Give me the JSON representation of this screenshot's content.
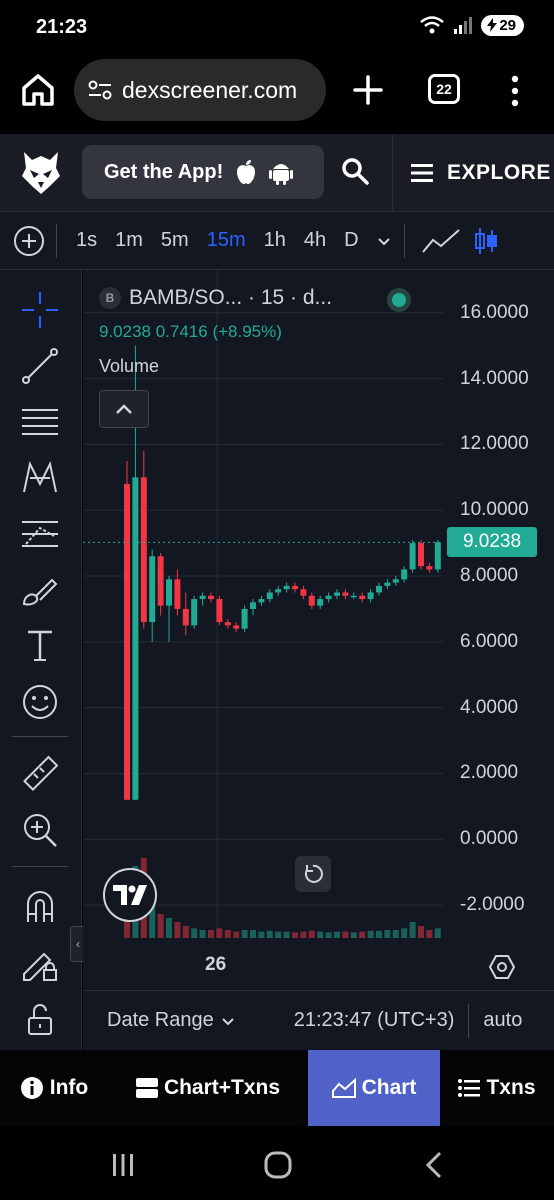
{
  "status_bar": {
    "time": "21:23",
    "battery": "29"
  },
  "browser": {
    "url": "dexscreener.com",
    "tab_count": "22"
  },
  "header": {
    "get_app_label": "Get the App!",
    "explore_label": "EXPLORE"
  },
  "toolbar": {
    "intervals": [
      "1s",
      "1m",
      "5m",
      "15m",
      "1h",
      "4h",
      "D"
    ],
    "active_interval": "15m"
  },
  "chart_legend": {
    "badge": "B",
    "title": "BAMB/SO... · 15 · d...",
    "ohlc": "9.0238  0.7416 (+8.95%)",
    "volume_label": "Volume"
  },
  "chart_data": {
    "type": "candlestick",
    "pair": "BAMB/SO...",
    "interval": "15",
    "last_price": "9.0238",
    "change": "0.7416",
    "change_pct": "+8.95%",
    "y_ticks": [
      "16.0000",
      "14.0000",
      "12.0000",
      "10.0000",
      "8.0000",
      "6.0000",
      "4.0000",
      "2.0000",
      "0.0000",
      "-2.0000"
    ],
    "ylim": [
      -3,
      17.3
    ],
    "x_ticks": [
      "26"
    ],
    "price_line": 9.0238,
    "candles": [
      [
        10.8,
        11.5,
        1.2,
        1.2
      ],
      [
        1.2,
        15,
        1.2,
        11.0
      ],
      [
        11.0,
        11.8,
        6.4,
        6.6
      ],
      [
        6.6,
        8.8,
        6.0,
        8.6
      ],
      [
        8.6,
        8.7,
        6.8,
        7.1
      ],
      [
        7.1,
        8.0,
        6.0,
        7.9
      ],
      [
        7.9,
        8.2,
        6.8,
        7.0
      ],
      [
        7.0,
        7.5,
        6.2,
        6.5
      ],
      [
        6.5,
        7.4,
        6.4,
        7.3
      ],
      [
        7.3,
        7.5,
        7.1,
        7.4
      ],
      [
        7.4,
        7.5,
        7.2,
        7.3
      ],
      [
        7.3,
        7.4,
        6.5,
        6.6
      ],
      [
        6.6,
        6.7,
        6.4,
        6.5
      ],
      [
        6.5,
        6.6,
        6.3,
        6.4
      ],
      [
        6.4,
        7.1,
        6.3,
        7.0
      ],
      [
        7.0,
        7.3,
        6.8,
        7.2
      ],
      [
        7.2,
        7.4,
        7.1,
        7.3
      ],
      [
        7.3,
        7.6,
        7.2,
        7.5
      ],
      [
        7.5,
        7.7,
        7.4,
        7.6
      ],
      [
        7.6,
        7.8,
        7.5,
        7.7
      ],
      [
        7.7,
        7.8,
        7.5,
        7.6
      ],
      [
        7.6,
        7.7,
        7.3,
        7.4
      ],
      [
        7.4,
        7.5,
        7.0,
        7.1
      ],
      [
        7.1,
        7.4,
        7.0,
        7.3
      ],
      [
        7.3,
        7.5,
        7.2,
        7.4
      ],
      [
        7.4,
        7.6,
        7.3,
        7.5
      ],
      [
        7.5,
        7.6,
        7.3,
        7.4
      ],
      [
        7.4,
        7.5,
        7.3,
        7.4
      ],
      [
        7.4,
        7.5,
        7.2,
        7.3
      ],
      [
        7.3,
        7.6,
        7.2,
        7.5
      ],
      [
        7.5,
        7.8,
        7.4,
        7.7
      ],
      [
        7.7,
        7.9,
        7.6,
        7.8
      ],
      [
        7.8,
        8.0,
        7.7,
        7.9
      ],
      [
        7.9,
        8.3,
        7.8,
        8.2
      ],
      [
        8.2,
        9.1,
        8.1,
        9.0
      ],
      [
        9.0,
        9.1,
        8.2,
        8.3
      ],
      [
        8.3,
        8.4,
        8.1,
        8.2
      ],
      [
        8.2,
        9.1,
        8.1,
        9.0238
      ]
    ],
    "volumes": [
      0.6,
      0.9,
      1.0,
      0.4,
      0.3,
      0.25,
      0.2,
      0.15,
      0.12,
      0.1,
      0.1,
      0.12,
      0.1,
      0.08,
      0.1,
      0.1,
      0.08,
      0.09,
      0.08,
      0.08,
      0.07,
      0.08,
      0.09,
      0.08,
      0.07,
      0.08,
      0.08,
      0.07,
      0.08,
      0.09,
      0.09,
      0.1,
      0.1,
      0.12,
      0.2,
      0.15,
      0.1,
      0.12
    ]
  },
  "chart_footer": {
    "xtick": "26",
    "date_range": "Date Range",
    "clock": "21:23:47 (UTC+3)",
    "auto": "auto"
  },
  "bottom_tabs": {
    "info": "Info",
    "chart_txns": "Chart+Txns",
    "chart": "Chart",
    "txns": "Txns"
  },
  "colors": {
    "up": "#22ab94",
    "down": "#f23645",
    "accent": "#2962ff",
    "active_tab": "#5062c8"
  }
}
